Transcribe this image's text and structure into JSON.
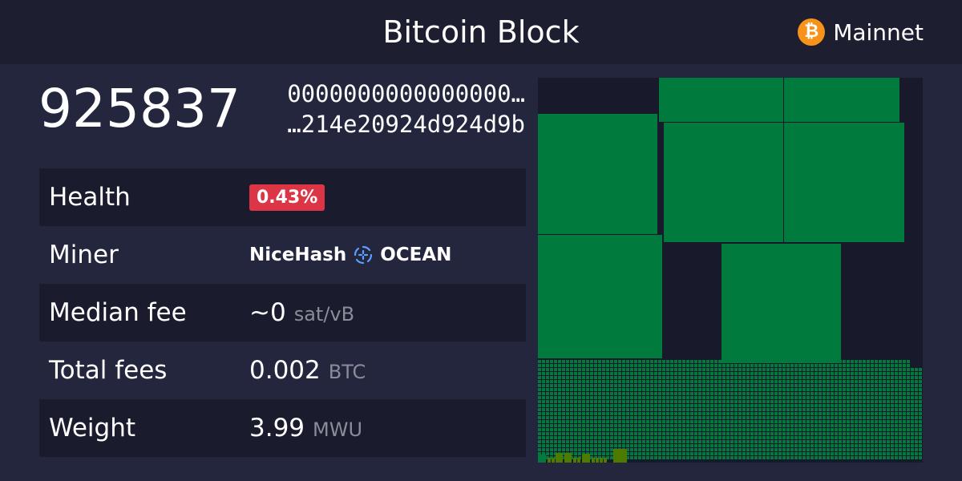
{
  "header": {
    "title": "Bitcoin Block",
    "network": "Mainnet",
    "network_icon": "bitcoin-icon"
  },
  "block": {
    "height": "925837",
    "hash_line1": "0000000000000000…",
    "hash_line2": "…214e20924d924d9b"
  },
  "details": {
    "health_label": "Health",
    "health_value": "0.43%",
    "miner_label": "Miner",
    "miner_primary": "NiceHash",
    "miner_secondary": "OCEAN",
    "median_fee_label": "Median fee",
    "median_fee_value": "~0",
    "median_fee_unit": "sat/vB",
    "total_fees_label": "Total fees",
    "total_fees_value": "0.002",
    "total_fees_unit": "BTC",
    "weight_label": "Weight",
    "weight_value": "3.99",
    "weight_unit": "MWU"
  },
  "colors": {
    "accent": "#f7931a",
    "badge": "#dc3545",
    "tx": "#007a3d",
    "tx_low": "#4f7a00"
  }
}
